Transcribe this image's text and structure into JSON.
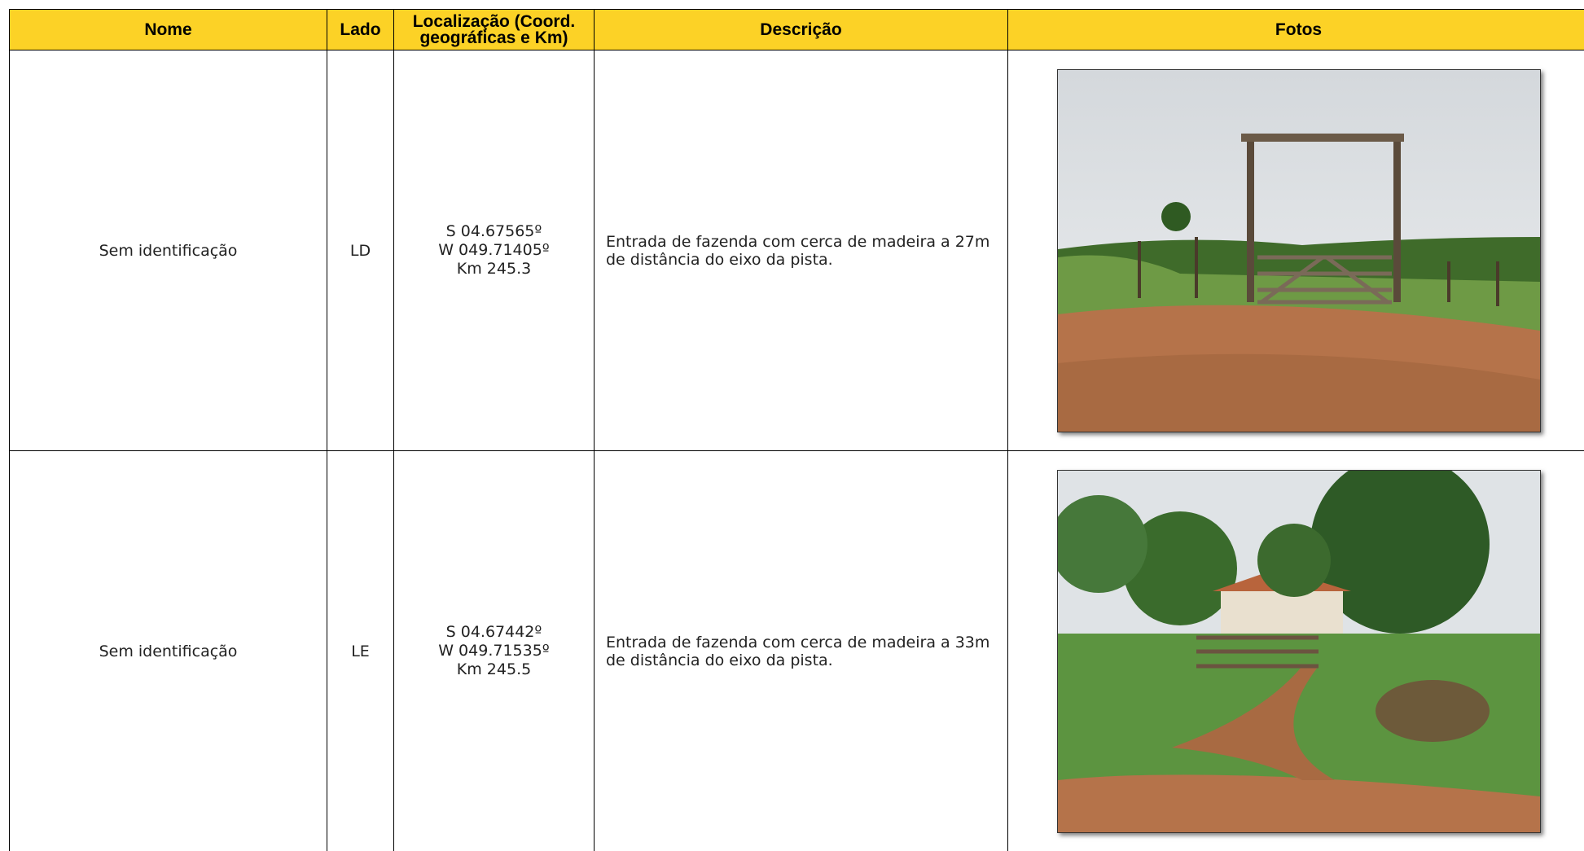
{
  "header": {
    "columns": [
      "Nome",
      "Lado",
      "Localização (Coord. geográficas e Km)",
      "Descrição",
      "Fotos"
    ]
  },
  "rows": [
    {
      "nome": "Sem identificação",
      "lado": "LD",
      "localizacao": [
        "S 04.67565º",
        "W 049.71405º",
        "Km 245.3"
      ],
      "descricao": "Entrada de fazenda com cerca de madeira a 27m de distância do eixo da pista."
    },
    {
      "nome": "Sem identificação",
      "lado": "LE",
      "localizacao": [
        "S 04.67442º",
        "W 049.71535º",
        "Km 245.5"
      ],
      "descricao": "Entrada de fazenda com cerca de madeira a 33m de distância do eixo da pista."
    }
  ]
}
